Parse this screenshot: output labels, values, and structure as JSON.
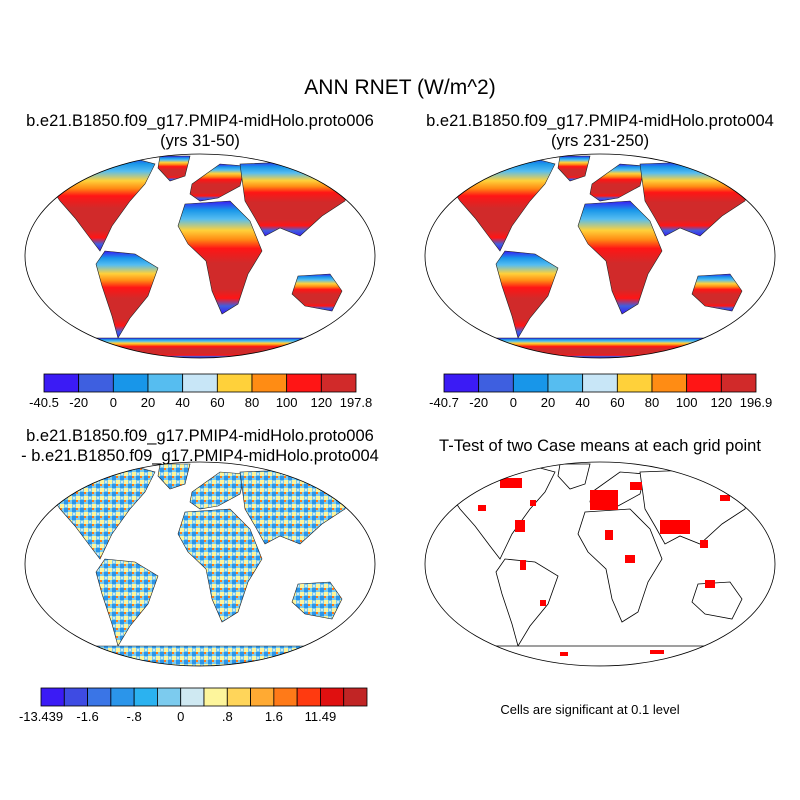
{
  "title": "ANN RNET (W/m^2)",
  "panels": [
    {
      "title_line1": "b.e21.B1850.f09_g17.PMIP4-midHolo.proto006",
      "title_line2": "(yrs 31-50)",
      "colorbar": {
        "labels": [
          "-40.5",
          "-20",
          "0",
          "20",
          "40",
          "60",
          "80",
          "100",
          "120",
          "197.8"
        ],
        "colors": [
          "#3b1bf5",
          "#3e5fe0",
          "#1896e9",
          "#56bdf0",
          "#c8e6f7",
          "#ffd13a",
          "#ff8c14",
          "#ff1515",
          "#d12a2a"
        ]
      }
    },
    {
      "title_line1": "b.e21.B1850.f09_g17.PMIP4-midHolo.proto004",
      "title_line2": "(yrs 231-250)",
      "colorbar": {
        "labels": [
          "-40.7",
          "-20",
          "0",
          "20",
          "40",
          "60",
          "80",
          "100",
          "120",
          "196.9"
        ],
        "colors": [
          "#3b1bf5",
          "#3e5fe0",
          "#1896e9",
          "#56bdf0",
          "#c8e6f7",
          "#ffd13a",
          "#ff8c14",
          "#ff1515",
          "#d12a2a"
        ]
      }
    },
    {
      "title_line1": "b.e21.B1850.f09_g17.PMIP4-midHolo.proto006",
      "title_line2": "- b.e21.B1850.f09_g17.PMIP4-midHolo.proto004",
      "colorbar": {
        "labels": [
          "-13.439",
          "",
          "-1.6",
          "",
          "-.8",
          "",
          "0",
          "",
          ".8",
          "",
          "1.6",
          "",
          "11.49"
        ],
        "colors": [
          "#3b1bf5",
          "#3e4be3",
          "#3a75e6",
          "#2b95ea",
          "#2bb2f0",
          "#7ccbee",
          "#cfe9f2",
          "#fdf59c",
          "#ffd55a",
          "#ffaa33",
          "#ff7a18",
          "#ff3a10",
          "#e01010",
          "#c12525"
        ]
      }
    },
    {
      "title_line1": "T-Test of two Case means at each grid point",
      "title_line2": "",
      "note": "Cells are significant at 0.1 level"
    }
  ]
}
